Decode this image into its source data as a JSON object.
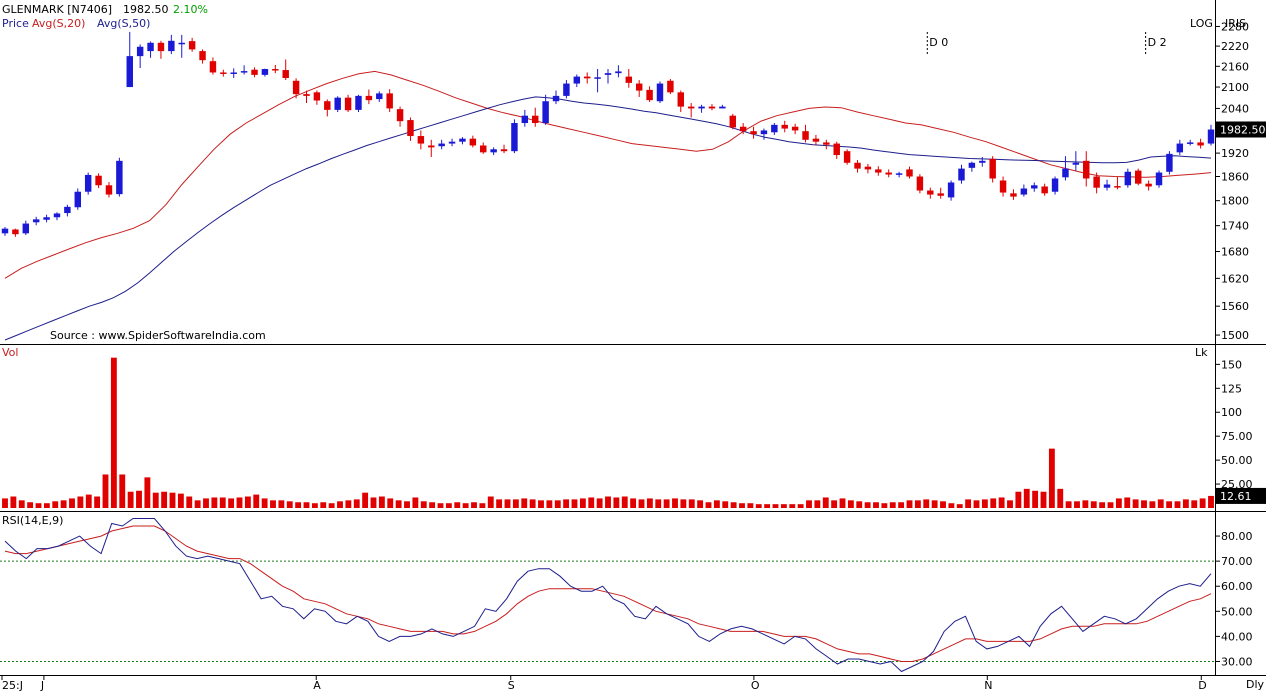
{
  "header": {
    "symbol": "GLENMARK [N7406]",
    "last_price": "1982.50",
    "change_pct": "2.10%",
    "legend_price": "Price",
    "legend_avg20": "Avg(S,20)",
    "legend_avg50": "Avg(S,50)",
    "scale_mode": "LOG",
    "scale_extra": "IRIS",
    "source": "Source : www.SpiderSoftwareIndia.com"
  },
  "colors": {
    "up": "#1a1ad6",
    "down": "#e00000",
    "avg20": "#c81e1e",
    "avg50": "#1e1e8c",
    "volume": "#e00000",
    "rsi": "#1e1e8c",
    "rsi_signal": "#c81e1e",
    "guide": "#1a7a1a",
    "change": "#00a000"
  },
  "events": [
    {
      "label": "D 0",
      "index": 89
    },
    {
      "label": "D 2",
      "index": 110
    }
  ],
  "chart_data": [
    {
      "type": "candlestick",
      "name": "price",
      "scale": "log",
      "ylim": [
        1490,
        2300
      ],
      "yticks": [
        "2280",
        "2220",
        "2160",
        "2100",
        "2040",
        "1980",
        "1920",
        "1860",
        "1800",
        "1740",
        "1680",
        "1620",
        "1560",
        "1500"
      ],
      "ytick_values": [
        2280,
        2220,
        2160,
        2100,
        2040,
        1980,
        1920,
        1860,
        1800,
        1740,
        1680,
        1620,
        1560,
        1500
      ],
      "last_value_label": "1982.50",
      "last_value": 1982.5,
      "ohlc": [
        [
          1722,
          1737,
          1716,
          1733
        ],
        [
          1731,
          1733,
          1714,
          1720
        ],
        [
          1722,
          1752,
          1718,
          1745
        ],
        [
          1748,
          1761,
          1741,
          1755
        ],
        [
          1754,
          1766,
          1748,
          1760
        ],
        [
          1760,
          1772,
          1753,
          1769
        ],
        [
          1770,
          1790,
          1762,
          1785
        ],
        [
          1784,
          1830,
          1778,
          1822
        ],
        [
          1822,
          1870,
          1815,
          1864
        ],
        [
          1862,
          1868,
          1831,
          1838
        ],
        [
          1838,
          1846,
          1808,
          1815
        ],
        [
          1816,
          1908,
          1810,
          1900
        ],
        [
          2100,
          2263,
          2100,
          2190
        ],
        [
          2190,
          2225,
          2155,
          2218
        ],
        [
          2205,
          2234,
          2185,
          2230
        ],
        [
          2230,
          2236,
          2182,
          2205
        ],
        [
          2205,
          2254,
          2196,
          2236
        ],
        [
          2230,
          2254,
          2185,
          2230
        ],
        [
          2235,
          2245,
          2203,
          2210
        ],
        [
          2205,
          2210,
          2168,
          2178
        ],
        [
          2175,
          2186,
          2136,
          2142
        ],
        [
          2142,
          2150,
          2130,
          2138
        ],
        [
          2138,
          2154,
          2126,
          2142
        ],
        [
          2142,
          2163,
          2136,
          2146
        ],
        [
          2150,
          2157,
          2128,
          2135
        ],
        [
          2135,
          2153,
          2130,
          2152
        ],
        [
          2152,
          2164,
          2140,
          2149
        ],
        [
          2149,
          2180,
          2120,
          2126
        ],
        [
          2118,
          2125,
          2068,
          2080
        ],
        [
          2080,
          2090,
          2055,
          2075
        ],
        [
          2085,
          2090,
          2050,
          2062
        ],
        [
          2060,
          2065,
          2018,
          2036
        ],
        [
          2036,
          2074,
          2030,
          2070
        ],
        [
          2070,
          2078,
          2030,
          2035
        ],
        [
          2036,
          2078,
          2030,
          2075
        ],
        [
          2075,
          2093,
          2052,
          2063
        ],
        [
          2066,
          2088,
          2058,
          2082
        ],
        [
          2082,
          2094,
          2030,
          2040
        ],
        [
          2038,
          2045,
          1990,
          2005
        ],
        [
          2008,
          2015,
          1952,
          1965
        ],
        [
          1965,
          1980,
          1930,
          1945
        ],
        [
          1940,
          1955,
          1910,
          1935
        ],
        [
          1938,
          1955,
          1930,
          1945
        ],
        [
          1945,
          1958,
          1938,
          1950
        ],
        [
          1950,
          1962,
          1943,
          1958
        ],
        [
          1958,
          1966,
          1935,
          1940
        ],
        [
          1940,
          1948,
          1918,
          1922
        ],
        [
          1922,
          1935,
          1915,
          1930
        ],
        [
          1930,
          1942,
          1920,
          1925
        ],
        [
          1925,
          2010,
          1920,
          2000
        ],
        [
          2000,
          2036,
          1990,
          2020
        ],
        [
          2020,
          2042,
          1990,
          2000
        ],
        [
          2000,
          2078,
          1995,
          2060
        ],
        [
          2060,
          2090,
          2052,
          2075
        ],
        [
          2075,
          2120,
          2068,
          2110
        ],
        [
          2110,
          2136,
          2100,
          2130
        ],
        [
          2130,
          2142,
          2110,
          2125
        ],
        [
          2125,
          2152,
          2085,
          2128
        ],
        [
          2135,
          2152,
          2110,
          2140
        ],
        [
          2140,
          2163,
          2128,
          2145
        ],
        [
          2130,
          2152,
          2098,
          2112
        ],
        [
          2110,
          2120,
          2072,
          2090
        ],
        [
          2092,
          2102,
          2058,
          2063
        ],
        [
          2060,
          2116,
          2055,
          2110
        ],
        [
          2118,
          2123,
          2080,
          2085
        ],
        [
          2085,
          2090,
          2030,
          2045
        ],
        [
          2045,
          2055,
          2015,
          2040
        ],
        [
          2040,
          2050,
          2028,
          2045
        ],
        [
          2045,
          2052,
          2035,
          2040
        ],
        [
          2040,
          2050,
          2040,
          2045
        ],
        [
          2020,
          2025,
          1983,
          1988
        ],
        [
          1990,
          2000,
          1970,
          1978
        ],
        [
          1978,
          1990,
          1958,
          1970
        ],
        [
          1970,
          1985,
          1955,
          1980
        ],
        [
          1975,
          2000,
          1968,
          1995
        ],
        [
          1995,
          2006,
          1975,
          1985
        ],
        [
          1990,
          1998,
          1970,
          1980
        ],
        [
          1978,
          1995,
          1948,
          1955
        ],
        [
          1958,
          1968,
          1940,
          1950
        ],
        [
          1948,
          1955,
          1930,
          1942
        ],
        [
          1945,
          1950,
          1905,
          1915
        ],
        [
          1925,
          1930,
          1890,
          1895
        ],
        [
          1895,
          1902,
          1870,
          1880
        ],
        [
          1885,
          1892,
          1868,
          1878
        ],
        [
          1878,
          1886,
          1862,
          1870
        ],
        [
          1870,
          1878,
          1858,
          1865
        ],
        [
          1865,
          1872,
          1858,
          1868
        ],
        [
          1878,
          1885,
          1855,
          1860
        ],
        [
          1860,
          1866,
          1818,
          1825
        ],
        [
          1825,
          1832,
          1805,
          1815
        ],
        [
          1818,
          1832,
          1805,
          1812
        ],
        [
          1808,
          1850,
          1800,
          1845
        ],
        [
          1850,
          1890,
          1842,
          1880
        ],
        [
          1882,
          1898,
          1872,
          1895
        ],
        [
          1895,
          1910,
          1885,
          1900
        ],
        [
          1905,
          1912,
          1845,
          1855
        ],
        [
          1850,
          1860,
          1810,
          1820
        ],
        [
          1818,
          1828,
          1802,
          1810
        ],
        [
          1815,
          1840,
          1810,
          1830
        ],
        [
          1830,
          1845,
          1822,
          1838
        ],
        [
          1835,
          1842,
          1812,
          1818
        ],
        [
          1822,
          1860,
          1815,
          1855
        ],
        [
          1858,
          1912,
          1850,
          1880
        ],
        [
          1890,
          1925,
          1875,
          1895
        ],
        [
          1900,
          1925,
          1835,
          1855
        ],
        [
          1860,
          1870,
          1818,
          1832
        ],
        [
          1832,
          1852,
          1825,
          1840
        ],
        [
          1836,
          1860,
          1828,
          1835
        ],
        [
          1838,
          1880,
          1832,
          1872
        ],
        [
          1875,
          1880,
          1838,
          1842
        ],
        [
          1842,
          1850,
          1825,
          1835
        ],
        [
          1838,
          1875,
          1832,
          1870
        ],
        [
          1872,
          1925,
          1865,
          1918
        ],
        [
          1922,
          1955,
          1915,
          1945
        ],
        [
          1945,
          1955,
          1940,
          1948
        ],
        [
          1948,
          1958,
          1932,
          1940
        ],
        [
          1945,
          1995,
          1940,
          1982.5
        ]
      ],
      "avg20": [
        1620,
        1642,
        1658,
        1672,
        1686,
        1700,
        1712,
        1722,
        1734,
        1752,
        1790,
        1840,
        1885,
        1930,
        1970,
        2000,
        2025,
        2050,
        2073,
        2092,
        2110,
        2125,
        2138,
        2145,
        2135,
        2120,
        2105,
        2088,
        2070,
        2055,
        2040,
        2028,
        2018,
        2006,
        1995,
        1985,
        1975,
        1965,
        1955,
        1945,
        1940,
        1935,
        1930,
        1925,
        1930,
        1950,
        1980,
        2005,
        2020,
        2030,
        2040,
        2044,
        2042,
        2030,
        2020,
        2010,
        2000,
        1995,
        1985,
        1975,
        1962,
        1950,
        1935,
        1920,
        1905,
        1890,
        1880,
        1870,
        1862,
        1860,
        1859,
        1858,
        1860,
        1863,
        1866,
        1870
      ],
      "avg50": [
        1490,
        1500,
        1510,
        1520,
        1530,
        1540,
        1550,
        1560,
        1568,
        1578,
        1592,
        1610,
        1632,
        1656,
        1680,
        1702,
        1724,
        1745,
        1765,
        1784,
        1802,
        1820,
        1838,
        1852,
        1866,
        1880,
        1892,
        1905,
        1917,
        1928,
        1940,
        1950,
        1960,
        1970,
        1980,
        1990,
        2000,
        2010,
        2020,
        2030,
        2040,
        2050,
        2058,
        2066,
        2072,
        2070,
        2066,
        2060,
        2055,
        2052,
        2048,
        2043,
        2038,
        2032,
        2028,
        2022,
        2016,
        2010,
        2004,
        1998,
        1990,
        1980,
        1970,
        1962,
        1956,
        1950,
        1946,
        1942,
        1940,
        1938,
        1936,
        1933,
        1928,
        1924,
        1920,
        1916,
        1914,
        1912,
        1910,
        1908,
        1906,
        1905,
        1904,
        1903,
        1902,
        1901,
        1900,
        1899,
        1898,
        1897,
        1896,
        1895,
        1895,
        1896,
        1902,
        1910,
        1912,
        1913,
        1911,
        1909,
        1907
      ]
    },
    {
      "type": "bar",
      "name": "volume",
      "ylabel": "Vol",
      "unit": "Lk",
      "ylim": [
        0,
        165
      ],
      "yticks": [
        "150",
        "125",
        "100",
        "75.00",
        "50.00",
        "25.00"
      ],
      "ytick_values": [
        150,
        125,
        100,
        75,
        50,
        25
      ],
      "last_value_label": "12.61",
      "last_value": 12.61,
      "values": [
        10,
        12,
        8,
        6,
        5,
        5,
        7,
        8,
        10,
        12,
        14,
        12,
        35,
        157,
        35,
        17,
        18,
        32,
        16,
        17,
        16,
        15,
        12,
        8,
        10,
        11,
        11,
        10,
        11,
        12,
        14,
        10,
        8,
        8,
        7,
        6,
        6,
        5,
        6,
        5,
        7,
        8,
        9,
        16,
        11,
        12,
        10,
        8,
        7,
        11,
        7,
        6,
        5,
        5,
        6,
        5,
        6,
        5,
        12,
        9,
        9,
        9,
        10,
        9,
        8,
        8,
        8,
        9,
        9,
        10,
        11,
        10,
        12,
        11,
        12,
        10,
        9,
        10,
        9,
        9,
        10,
        9,
        9,
        8,
        6,
        8,
        7,
        6,
        5,
        5,
        4,
        4,
        4,
        4,
        4,
        4,
        8,
        8,
        11,
        8,
        10,
        8,
        7,
        6,
        6,
        5,
        6,
        6,
        8,
        8,
        9,
        8,
        7,
        5,
        4,
        9,
        8,
        9,
        10,
        11,
        8,
        17,
        20,
        18,
        17,
        62,
        20,
        7,
        7,
        8,
        7,
        6,
        6,
        10,
        11,
        9,
        8,
        7,
        9,
        7,
        7,
        9,
        8,
        10,
        12.61
      ]
    },
    {
      "type": "line",
      "name": "rsi",
      "ylabel": "RSI(14,E,9)",
      "ylim": [
        25,
        88
      ],
      "yticks": [
        "80.00",
        "70.00",
        "60.00",
        "50.00",
        "40.00",
        "30.00"
      ],
      "ytick_values": [
        80,
        70,
        60,
        50,
        40,
        30
      ],
      "guides": [
        70,
        30
      ],
      "rsi": [
        78,
        74,
        71,
        75,
        75,
        76,
        78,
        80,
        76,
        73,
        85,
        84,
        87,
        87,
        87,
        82,
        76,
        72,
        71,
        72,
        71,
        70,
        69,
        62,
        55,
        56,
        52,
        51,
        47,
        51,
        50,
        46,
        45,
        48,
        46,
        40,
        38,
        40,
        40,
        41,
        43,
        41,
        40,
        42,
        44,
        51,
        50,
        55,
        62,
        66,
        67,
        67,
        64,
        60,
        58,
        58,
        60,
        55,
        53,
        48,
        47,
        52,
        49,
        47,
        45,
        40,
        38,
        41,
        43,
        44,
        43,
        41,
        39,
        37,
        40,
        39,
        35,
        32,
        29,
        31,
        31,
        30,
        29,
        30,
        26,
        28,
        30,
        34,
        42,
        46,
        48,
        38,
        35,
        36,
        38,
        40,
        36,
        44,
        49,
        52,
        47,
        42,
        45,
        48,
        47,
        45,
        47,
        51,
        55,
        58,
        60,
        61,
        60,
        65
      ],
      "signal": [
        74,
        73,
        73,
        74,
        75,
        76,
        77,
        78,
        79,
        80,
        82,
        83,
        84,
        84,
        84,
        82,
        79,
        76,
        74,
        73,
        72,
        71,
        71,
        69,
        66,
        63,
        60,
        58,
        55,
        54,
        53,
        51,
        49,
        48,
        47,
        45,
        44,
        43,
        42,
        42,
        42,
        42,
        41,
        41,
        42,
        44,
        46,
        49,
        53,
        56,
        58,
        59,
        59,
        59,
        59,
        59,
        58,
        57,
        56,
        54,
        52,
        50,
        49,
        48,
        47,
        45,
        44,
        43,
        42,
        42,
        42,
        42,
        41,
        40,
        40,
        40,
        39,
        37,
        35,
        34,
        33,
        33,
        32,
        31,
        30,
        30,
        31,
        33,
        35,
        37,
        39,
        39,
        38,
        38,
        38,
        38,
        38,
        39,
        41,
        43,
        44,
        44,
        44,
        45,
        45,
        45,
        45,
        46,
        48,
        50,
        52,
        54,
        55,
        57
      ]
    }
  ],
  "x_axis": {
    "labels": [
      {
        "text": "25:J",
        "index": 0
      },
      {
        "text": "J",
        "index": 4
      },
      {
        "text": "A",
        "index": 32
      },
      {
        "text": "S",
        "index": 52
      },
      {
        "text": "O",
        "index": 77
      },
      {
        "text": "N",
        "index": 101
      },
      {
        "text": "D",
        "index": 123
      }
    ],
    "count": 125,
    "period": "Dly"
  }
}
